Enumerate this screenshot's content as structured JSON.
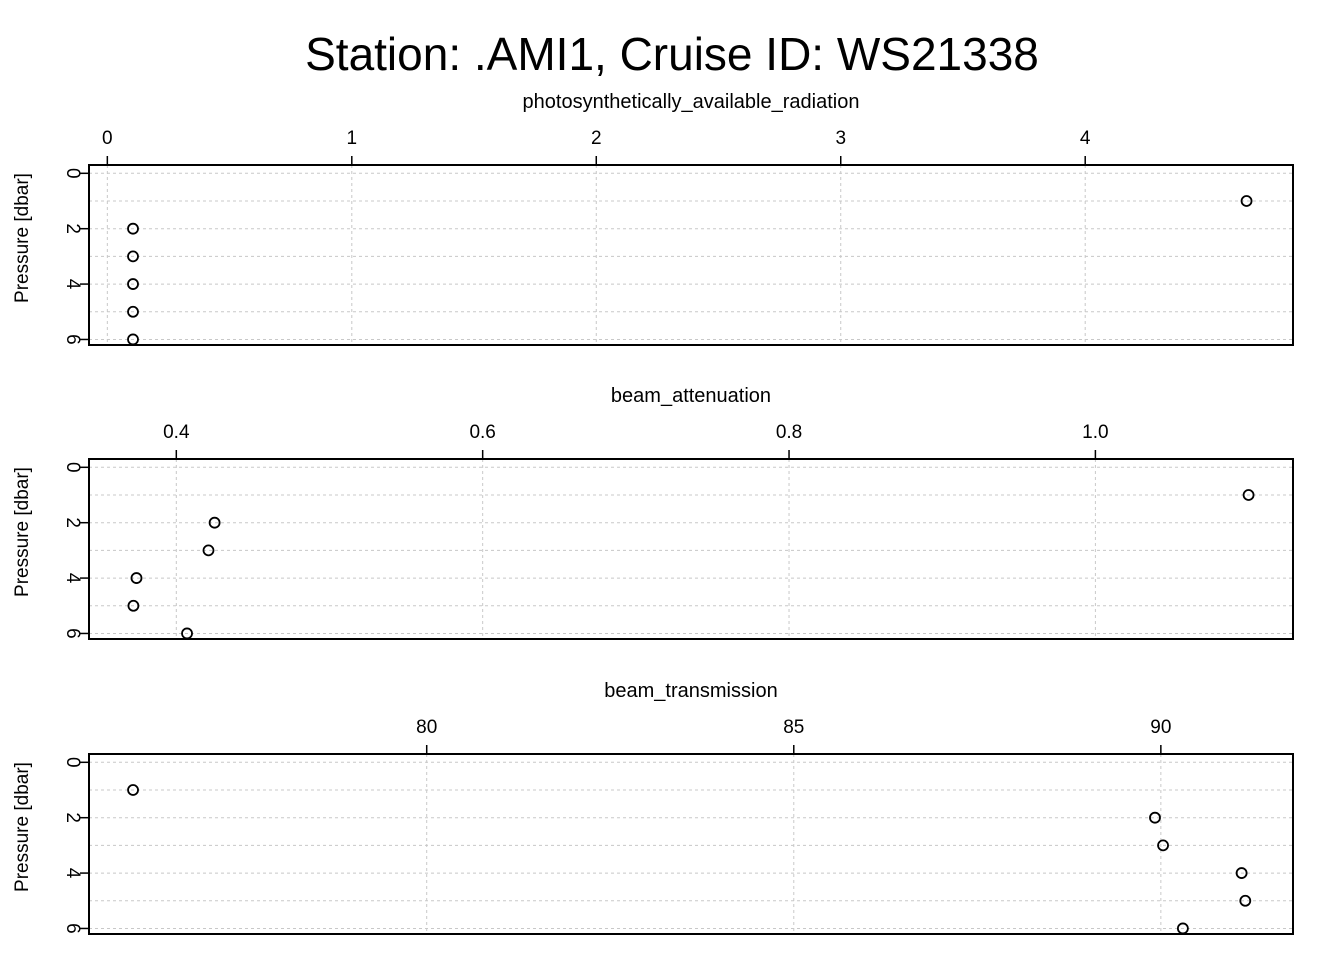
{
  "figure": {
    "title": "Station: .AMI1, Cruise ID: WS21338"
  },
  "chart_data": [
    {
      "type": "scatter",
      "xlabel": "photosynthetically_available_radiation",
      "ylabel": "Pressure [dbar]",
      "xlim": [
        -0.075,
        4.85
      ],
      "ylim": [
        6.2,
        -0.3
      ],
      "y_reversed": true,
      "x_axis_position": "top",
      "grid": true,
      "xticks": [
        0,
        1,
        2,
        3,
        4
      ],
      "xtick_labels": [
        "0",
        "1",
        "2",
        "3",
        "4"
      ],
      "yticks": [
        0,
        2,
        4,
        6
      ],
      "ytick_labels": [
        "0",
        "2",
        "4",
        "6"
      ],
      "points": [
        {
          "x": 4.66,
          "y": 1
        },
        {
          "x": 0.105,
          "y": 2
        },
        {
          "x": 0.105,
          "y": 3
        },
        {
          "x": 0.105,
          "y": 4
        },
        {
          "x": 0.105,
          "y": 5
        },
        {
          "x": 0.105,
          "y": 6
        }
      ]
    },
    {
      "type": "scatter",
      "xlabel": "beam_attenuation",
      "ylabel": "Pressure [dbar]",
      "xlim": [
        0.343,
        1.129
      ],
      "ylim": [
        6.2,
        -0.3
      ],
      "y_reversed": true,
      "x_axis_position": "top",
      "grid": true,
      "xticks": [
        0.4,
        0.6,
        0.8,
        1.0
      ],
      "xtick_labels": [
        "0.4",
        "0.6",
        "0.8",
        "1.0"
      ],
      "yticks": [
        0,
        2,
        4,
        6
      ],
      "ytick_labels": [
        "0",
        "2",
        "4",
        "6"
      ],
      "points": [
        {
          "x": 1.1,
          "y": 1
        },
        {
          "x": 0.425,
          "y": 2
        },
        {
          "x": 0.421,
          "y": 3
        },
        {
          "x": 0.374,
          "y": 4
        },
        {
          "x": 0.372,
          "y": 5
        },
        {
          "x": 0.407,
          "y": 6
        }
      ]
    },
    {
      "type": "scatter",
      "xlabel": "beam_transmission",
      "ylabel": "Pressure [dbar]",
      "xlim": [
        75.4,
        91.8
      ],
      "ylim": [
        6.2,
        -0.3
      ],
      "y_reversed": true,
      "x_axis_position": "top",
      "grid": true,
      "xticks": [
        80,
        85,
        90
      ],
      "xtick_labels": [
        "80",
        "85",
        "90"
      ],
      "yticks": [
        0,
        2,
        4,
        6
      ],
      "ytick_labels": [
        "0",
        "2",
        "4",
        "6"
      ],
      "points": [
        {
          "x": 76.0,
          "y": 1
        },
        {
          "x": 89.92,
          "y": 2
        },
        {
          "x": 90.03,
          "y": 3
        },
        {
          "x": 91.1,
          "y": 4
        },
        {
          "x": 91.15,
          "y": 5
        },
        {
          "x": 90.3,
          "y": 6
        }
      ]
    }
  ]
}
